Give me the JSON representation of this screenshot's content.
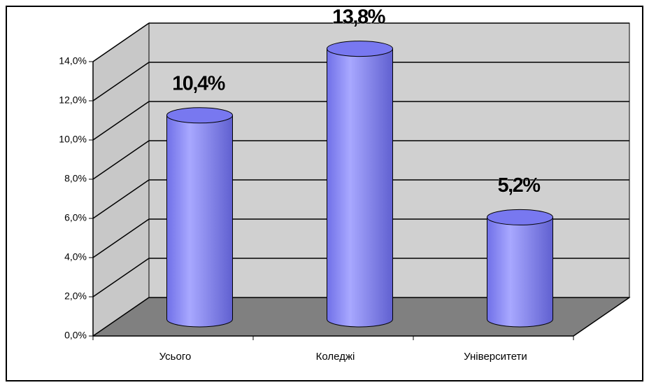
{
  "chart_data": {
    "type": "bar",
    "categories": [
      "Усього",
      "Коледжі",
      "Університети"
    ],
    "values": [
      10.4,
      13.8,
      5.2
    ],
    "value_labels": [
      "10,4%",
      "13,8%",
      "5,2%"
    ],
    "color": "#8080ff",
    "ylim": [
      0,
      14
    ],
    "yticks": [
      {
        "value": 0,
        "label": "0,0%"
      },
      {
        "value": 2,
        "label": "2,0%"
      },
      {
        "value": 4,
        "label": "4,0%"
      },
      {
        "value": 6,
        "label": "6,0%"
      },
      {
        "value": 8,
        "label": "8,0%"
      },
      {
        "value": 10,
        "label": "10,0%"
      },
      {
        "value": 12,
        "label": "12,0%"
      },
      {
        "value": 14,
        "label": "14,0%"
      }
    ],
    "grid": true
  }
}
